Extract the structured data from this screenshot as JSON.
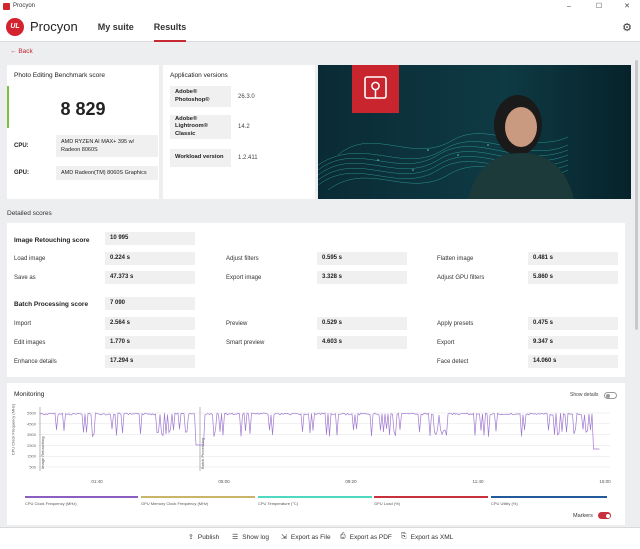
{
  "window": {
    "title": "Procyon",
    "controls": [
      "–",
      "☐",
      "✕"
    ]
  },
  "header": {
    "app_name": "Procyon",
    "logo_text": "UL",
    "tabs": [
      {
        "label": "My suite"
      },
      {
        "label": "Results"
      }
    ],
    "active_tab": "Results"
  },
  "back_label": "Back",
  "score_card": {
    "title": "Photo Editing Benchmark score",
    "score": "8 829",
    "cpu_label": "CPU:",
    "cpu_value": "AMD RYZEN AI MAX+ 395 w/ Radeon 8060S",
    "gpu_label": "GPU:",
    "gpu_value": "AMD Radeon(TM) 8060S Graphics"
  },
  "app_versions": {
    "title": "Application versions",
    "rows": [
      {
        "name": "Adobe® Photoshop®",
        "version": "26.3.0"
      },
      {
        "name": "Adobe® Lightroom® Classic",
        "version": "14.2"
      },
      {
        "name": "Workload version",
        "version": "1.2.411"
      }
    ]
  },
  "detailed": {
    "title": "Detailed scores",
    "groups": [
      {
        "title": "Image Retouching score",
        "score": "10 995",
        "rows": [
          [
            {
              "label": "Load image",
              "value": "0.224 s"
            },
            {
              "label": "Adjust filters",
              "value": "0.595 s"
            },
            {
              "label": "Flatten image",
              "value": "0.481 s"
            }
          ],
          [
            {
              "label": "Save as",
              "value": "47.373 s"
            },
            {
              "label": "Export image",
              "value": "3.328 s"
            },
            {
              "label": "Adjust GPU filters",
              "value": "5.860 s"
            }
          ]
        ]
      },
      {
        "title": "Batch Processing score",
        "score": "7 090",
        "rows": [
          [
            {
              "label": "Import",
              "value": "2.564 s"
            },
            {
              "label": "Preview",
              "value": "0.529 s"
            },
            {
              "label": "Apply presets",
              "value": "0.475 s"
            }
          ],
          [
            {
              "label": "Edit images",
              "value": "1.770 s"
            },
            {
              "label": "Smart preview",
              "value": "4.603 s"
            },
            {
              "label": "Export",
              "value": "9.347 s"
            }
          ],
          [
            {
              "label": "Enhance details",
              "value": "17.294 s"
            },
            {
              "label": "Face detect",
              "value": "14.060 s"
            }
          ]
        ]
      }
    ]
  },
  "monitoring": {
    "title": "Monitoring",
    "show_details_label": "Show details",
    "show_details_on": false,
    "markers_label": "Markers",
    "markers_on": true,
    "y_axis_label": "CPU Clock Frequency (MHz)",
    "y_ticks": [
      "5500",
      "4500",
      "3500",
      "2500",
      "1500",
      "500"
    ],
    "x_ticks": [
      "01:40",
      "05:00",
      "08:20",
      "11:40",
      "15:00"
    ],
    "markers": [
      "Image Retouching",
      "Batch Processing"
    ],
    "line_color": "#a07ad0",
    "legend": [
      {
        "label": "CPU Clock Frequency (MHz)",
        "color": "#8a5fbf"
      },
      {
        "label": "GPU Memory Clock Frequency (MHz)",
        "color": "#c9b46a"
      },
      {
        "label": "CPU Temperature (°C)",
        "color": "#4fd8c0"
      },
      {
        "label": "GPU Load (%)",
        "color": "#c8313b"
      },
      {
        "label": "CPU Utility (%)",
        "color": "#245a9c"
      }
    ]
  },
  "bottom_bar": [
    {
      "icon": "publish-icon",
      "glyph": "⇪",
      "label": "Publish"
    },
    {
      "icon": "log-icon",
      "glyph": "☰",
      "label": "Show log"
    },
    {
      "icon": "file-icon",
      "glyph": "⇲",
      "label": "Export as File"
    },
    {
      "icon": "pdf-icon",
      "glyph": "⎙",
      "label": "Export as PDF"
    },
    {
      "icon": "xml-icon",
      "glyph": "⎘",
      "label": "Export as XML"
    }
  ],
  "colors": {
    "accent": "#c8313b",
    "score_bar": "#7bc142",
    "toggle_on": "#c8313b"
  }
}
